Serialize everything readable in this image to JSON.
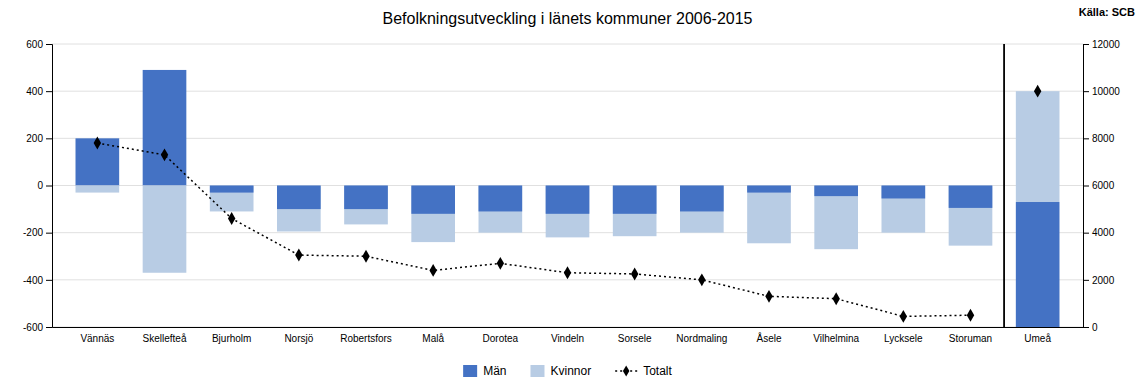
{
  "chart_data": {
    "type": "bar",
    "title": "Befolkningsutveckling  i länets kommuner 2006-2015",
    "annotations": [
      "Källa: SCB"
    ],
    "categories": [
      "Vännäs",
      "Skellefteå",
      "Bjurholm",
      "Norsjö",
      "Robertsfors",
      "Malå",
      "Dorotea",
      "Vindeln",
      "Sorsele",
      "Nordmaling",
      "Åsele",
      "Vilhelmina",
      "Lycksele",
      "Storuman",
      "Umeå"
    ],
    "series": [
      {
        "name": "Män",
        "type": "bar",
        "axis": "y",
        "color": "#4472C4",
        "values": [
          200,
          490,
          -30,
          -100,
          -100,
          -120,
          -110,
          -120,
          -120,
          -110,
          -30,
          -45,
          -55,
          -95,
          null
        ]
      },
      {
        "name": "Kvinnor",
        "type": "bar",
        "axis": "y",
        "color": "#B8CCE4",
        "values": [
          -30,
          -370,
          -110,
          -195,
          -165,
          -240,
          -200,
          -220,
          -215,
          -200,
          -245,
          -270,
          -200,
          -255,
          null
        ]
      },
      {
        "name": "Totalt",
        "type": "line",
        "axis": "y",
        "color": "#000000",
        "line_style": "dotted",
        "marker": "diamond",
        "values": [
          180,
          130,
          -140,
          -295,
          -300,
          -360,
          -330,
          -370,
          -375,
          -400,
          -470,
          -480,
          -555,
          -550,
          null
        ]
      },
      {
        "name": "Män",
        "type": "bar",
        "axis": "y2",
        "color": "#4472C4",
        "stacked": true,
        "values": [
          null,
          null,
          null,
          null,
          null,
          null,
          null,
          null,
          null,
          null,
          null,
          null,
          null,
          null,
          5300
        ]
      },
      {
        "name": "Kvinnor",
        "type": "bar",
        "axis": "y2",
        "color": "#B8CCE4",
        "stacked": true,
        "values": [
          null,
          null,
          null,
          null,
          null,
          null,
          null,
          null,
          null,
          null,
          null,
          null,
          null,
          null,
          4700
        ]
      },
      {
        "name": "Totalt",
        "type": "line",
        "axis": "y2",
        "color": "#000000",
        "line_style": "none",
        "marker": "diamond",
        "values": [
          null,
          null,
          null,
          null,
          null,
          null,
          null,
          null,
          null,
          null,
          null,
          null,
          null,
          null,
          10000
        ]
      }
    ],
    "ylim": [
      -600,
      600
    ],
    "yticks": [
      -600,
      -400,
      -200,
      0,
      200,
      400,
      600
    ],
    "y2lim": [
      0,
      12000
    ],
    "y2ticks": [
      0,
      2000,
      4000,
      6000,
      8000,
      10000,
      12000
    ],
    "grid": true,
    "legend": "bottom"
  }
}
